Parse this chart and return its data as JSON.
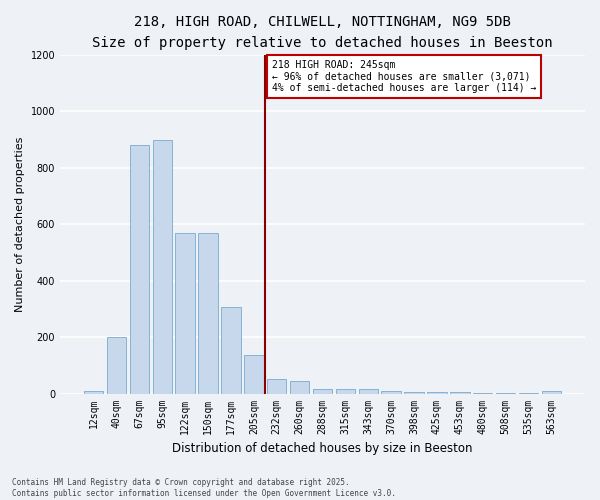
{
  "title_line1": "218, HIGH ROAD, CHILWELL, NOTTINGHAM, NG9 5DB",
  "title_line2": "Size of property relative to detached houses in Beeston",
  "xlabel": "Distribution of detached houses by size in Beeston",
  "ylabel": "Number of detached properties",
  "footer": "Contains HM Land Registry data © Crown copyright and database right 2025.\nContains public sector information licensed under the Open Government Licence v3.0.",
  "categories": [
    "12sqm",
    "40sqm",
    "67sqm",
    "95sqm",
    "122sqm",
    "150sqm",
    "177sqm",
    "205sqm",
    "232sqm",
    "260sqm",
    "288sqm",
    "315sqm",
    "343sqm",
    "370sqm",
    "398sqm",
    "425sqm",
    "453sqm",
    "480sqm",
    "508sqm",
    "535sqm",
    "563sqm"
  ],
  "values": [
    10,
    200,
    880,
    900,
    570,
    570,
    305,
    135,
    50,
    45,
    15,
    15,
    15,
    10,
    5,
    5,
    5,
    3,
    2,
    1,
    8
  ],
  "bar_color": "#c8d8ec",
  "bar_edge_color": "#7aaacc",
  "vline_x": 8,
  "vline_color": "#880000",
  "annotation_text": "218 HIGH ROAD: 245sqm\n← 96% of detached houses are smaller (3,071)\n4% of semi-detached houses are larger (114) →",
  "annotation_box_facecolor": "#ffffff",
  "annotation_box_edgecolor": "#bb0000",
  "ylim": [
    0,
    1200
  ],
  "yticks": [
    0,
    200,
    400,
    600,
    800,
    1000,
    1200
  ],
  "background_color": "#eef2f7",
  "grid_color": "#ffffff",
  "title_fontsize": 10,
  "subtitle_fontsize": 9,
  "ylabel_fontsize": 8,
  "xlabel_fontsize": 8.5,
  "tick_fontsize": 7,
  "ann_fontsize": 7,
  "footer_fontsize": 5.5
}
